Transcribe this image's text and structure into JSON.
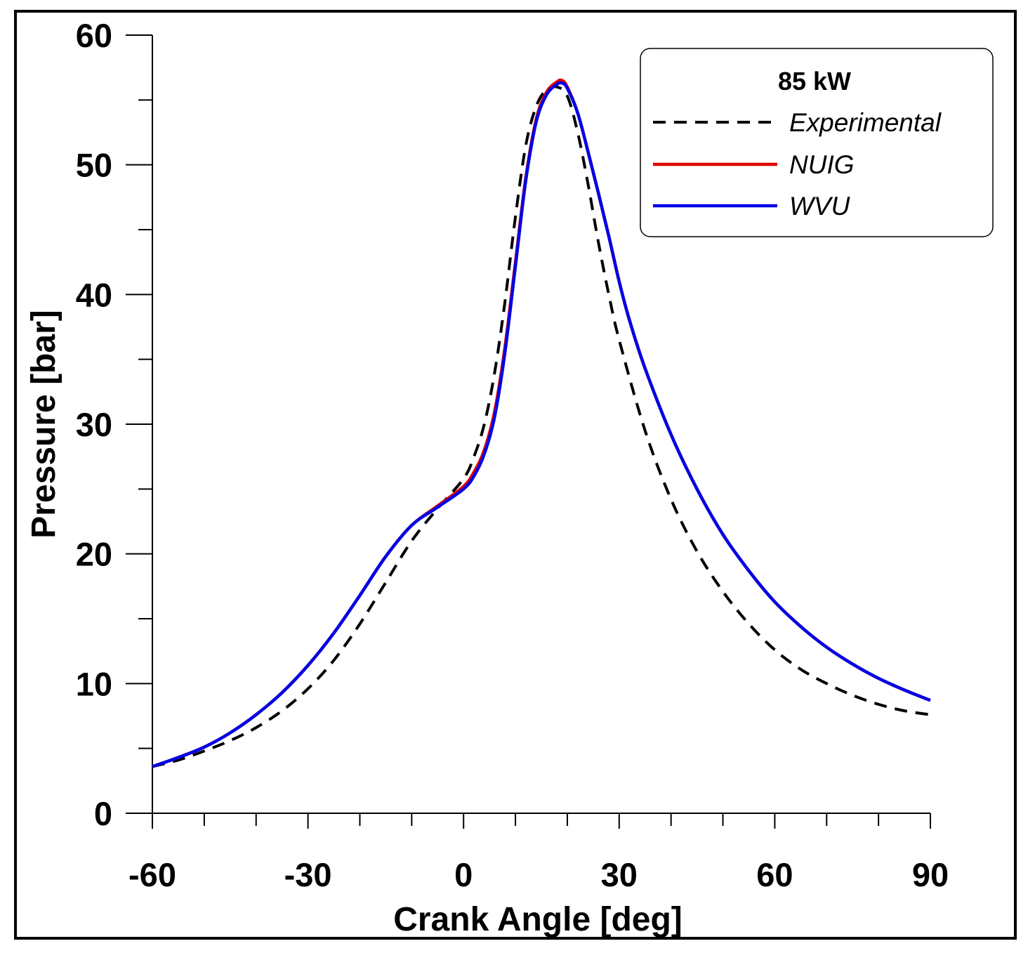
{
  "chart_data": {
    "type": "line",
    "title": "",
    "xlabel": "Crank Angle [deg]",
    "ylabel": "Pressure [bar]",
    "xlim": [
      -60,
      90
    ],
    "ylim": [
      0,
      60
    ],
    "x_ticks": [
      -60,
      -30,
      0,
      30,
      60,
      90
    ],
    "y_ticks": [
      0,
      10,
      20,
      30,
      40,
      50,
      60
    ],
    "x_minor_step": 10,
    "y_minor_step": 5,
    "grid": false,
    "legend": {
      "title": "85 kW",
      "placement": "top-right"
    },
    "series": [
      {
        "name": "Experimental",
        "color": "#000000",
        "style": "dashed",
        "x": [
          -60,
          -55,
          -50,
          -45,
          -40,
          -35,
          -30,
          -25,
          -20,
          -15,
          -10,
          -5,
          0,
          2,
          4,
          6,
          8,
          10,
          12,
          14,
          16,
          18,
          20,
          22,
          24,
          26,
          28,
          30,
          35,
          40,
          45,
          50,
          55,
          60,
          65,
          70,
          75,
          80,
          85,
          90
        ],
        "values": [
          3.6,
          4.1,
          4.8,
          5.6,
          6.6,
          7.9,
          9.6,
          11.8,
          14.6,
          17.8,
          21.0,
          23.5,
          25.8,
          27.5,
          30.0,
          34.0,
          39.5,
          46.0,
          51.5,
          54.5,
          55.8,
          56.0,
          55.3,
          52.5,
          48.5,
          44.0,
          40.0,
          36.5,
          29.5,
          24.2,
          20.2,
          17.1,
          14.6,
          12.6,
          11.1,
          10.0,
          9.1,
          8.4,
          7.9,
          7.6
        ]
      },
      {
        "name": "NUIG",
        "color": "#e00000",
        "style": "solid",
        "x": [
          -60,
          -55,
          -50,
          -45,
          -40,
          -35,
          -30,
          -25,
          -20,
          -15,
          -10,
          -5,
          0,
          2,
          4,
          6,
          8,
          10,
          12,
          14,
          16,
          18,
          19,
          20,
          22,
          24,
          26,
          28,
          30,
          32,
          35,
          40,
          45,
          50,
          55,
          60,
          65,
          70,
          75,
          80,
          85,
          90
        ],
        "values": [
          3.6,
          4.3,
          5.1,
          6.2,
          7.6,
          9.3,
          11.4,
          13.9,
          16.8,
          19.8,
          22.2,
          23.7,
          25.2,
          26.3,
          28.0,
          31.0,
          36.0,
          42.5,
          49.0,
          53.5,
          55.6,
          56.4,
          56.5,
          56.0,
          54.0,
          51.0,
          47.8,
          44.5,
          41.0,
          38.0,
          34.3,
          29.2,
          25.0,
          21.5,
          18.7,
          16.3,
          14.4,
          12.8,
          11.5,
          10.4,
          9.5,
          8.7
        ]
      },
      {
        "name": "WVU",
        "color": "#0000e6",
        "style": "solid",
        "x": [
          -60,
          -55,
          -50,
          -45,
          -40,
          -35,
          -30,
          -25,
          -20,
          -15,
          -10,
          -5,
          0,
          2,
          4,
          6,
          8,
          10,
          12,
          14,
          16,
          18,
          19,
          20,
          22,
          24,
          26,
          28,
          30,
          32,
          35,
          40,
          45,
          50,
          55,
          60,
          65,
          70,
          75,
          80,
          85,
          90
        ],
        "values": [
          3.6,
          4.3,
          5.1,
          6.2,
          7.6,
          9.3,
          11.4,
          13.9,
          16.8,
          19.8,
          22.2,
          23.6,
          25.0,
          26.0,
          27.7,
          30.6,
          35.6,
          42.2,
          48.8,
          53.3,
          55.4,
          56.2,
          56.3,
          55.9,
          54.0,
          51.0,
          47.8,
          44.5,
          41.0,
          38.0,
          34.3,
          29.2,
          25.0,
          21.5,
          18.7,
          16.3,
          14.4,
          12.8,
          11.5,
          10.4,
          9.5,
          8.7
        ]
      }
    ]
  }
}
